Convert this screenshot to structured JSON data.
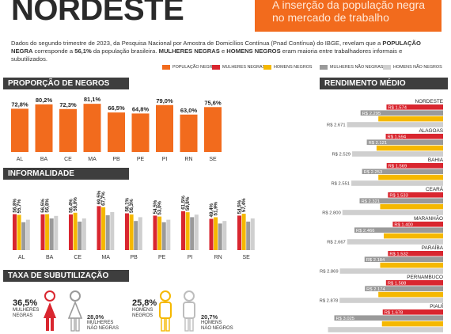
{
  "header": {
    "title": "NORDESTE",
    "subtitle": "A inserção da população negra no mercado de trabalho"
  },
  "intro": {
    "part1": "Dados do segundo trimestre de 2023, da Pesquisa Nacional por Amostra de Domicílios Contínua (Pnad Contínua) do IBGE, revelam que a ",
    "bold1": "POPULAÇÃO NEGRA",
    "part2": " corresponde a ",
    "bold2": "56,1%",
    "part3": " da população brasileira. ",
    "bold3": "MULHERES NEGRAS",
    "part4": " e ",
    "bold4": "HOMENS NEGROS",
    "part5": " eram maioria entre trabalhadores informais e subutilizados."
  },
  "legend": [
    {
      "label": "POPULAÇÃO NEGRA",
      "color": "#f26b1d"
    },
    {
      "label": "MULHERES NEGRAS",
      "color": "#d9262f"
    },
    {
      "label": "HOMENS NEGROS",
      "color": "#f5b800"
    },
    {
      "label": "MULHERES NÃO NEGRAS",
      "color": "#9a9a9a"
    },
    {
      "label": "HOMENS NÃO NEGROS",
      "color": "#cfcfcf"
    }
  ],
  "sections": {
    "proporcao": "PROPORÇÃO DE NEGROS",
    "informalidade": "INFORMALIDADE",
    "subutilizacao": "TAXA DE SUBUTILIZAÇÃO",
    "rendimento": "RENDIMENTO MÉDIO"
  },
  "subutilizacao": {
    "mulheres_negras": {
      "value": "36,5%",
      "label1": "MULHERES",
      "label2": "NEGRAS"
    },
    "mulheres_nao_negras": {
      "value": "28,0%",
      "label1": "MULHERES",
      "label2": "NÃO NEGRAS"
    },
    "homens_negros": {
      "value": "25,8%",
      "label1": "HOMENS",
      "label2": "NEGROS"
    },
    "homens_nao_negros": {
      "value": "20,7%",
      "label1": "HOMENS",
      "label2": "NÃO NEGROS"
    }
  },
  "chart_data": [
    {
      "type": "bar",
      "title": "PROPORÇÃO DE NEGROS",
      "categories": [
        "AL",
        "BA",
        "CE",
        "MA",
        "PB",
        "PE",
        "PI",
        "RN",
        "SE"
      ],
      "values": [
        72.8,
        80.2,
        72.3,
        81.1,
        66.5,
        64.8,
        79.0,
        63.0,
        75.6
      ],
      "value_labels": [
        "72,8%",
        "80,2%",
        "72,3%",
        "81,1%",
        "66,5%",
        "64,8%",
        "79,0%",
        "63,0%",
        "75,6%"
      ],
      "ylim": [
        0,
        100
      ],
      "color": "#f26b1d"
    },
    {
      "type": "bar",
      "title": "INFORMALIDADE",
      "categories": [
        "AL",
        "BA",
        "CE",
        "MA",
        "PB",
        "PE",
        "PI",
        "RN",
        "SE"
      ],
      "series": [
        {
          "name": "MULHERES NEGRAS",
          "color": "#d9262f",
          "values": [
            56.8,
            56.5,
            56.4,
            69.5,
            58.1,
            54.5,
            61.5,
            49.4,
            54.5
          ],
          "value_labels": [
            "56,8%",
            "56,5%",
            "56,4%",
            "69,5%",
            "58,1%",
            "54,5%",
            "61,5%",
            "49,4%",
            "54,5%"
          ]
        },
        {
          "name": "HOMENS NEGROS",
          "color": "#f5b800",
          "values": [
            55.7,
            56.8,
            59.0,
            67.7,
            56.3,
            53.0,
            59.8,
            51.9,
            57.4
          ],
          "value_labels": [
            "55,7%",
            "56,8%",
            "59,0%",
            "67,7%",
            "56,3%",
            "53,0%",
            "59,8%",
            "51,9%",
            "57,4%"
          ]
        },
        {
          "name": "MULHERES NÃO NEGRAS",
          "color": "#9a9a9a",
          "values": [
            44,
            50,
            45,
            55,
            46,
            44,
            52,
            42,
            45
          ],
          "value_labels": []
        },
        {
          "name": "HOMENS NÃO NEGROS",
          "color": "#cfcfcf",
          "values": [
            48,
            54,
            50,
            60,
            52,
            48,
            56,
            46,
            50
          ],
          "value_labels": []
        }
      ],
      "ylim": [
        0,
        100
      ]
    },
    {
      "type": "bar",
      "orientation": "horizontal",
      "title": "RENDIMENTO MÉDIO",
      "categories": [
        "NORDESTE",
        "ALAGOAS",
        "BAHIA",
        "CEARÁ",
        "MARANHÃO",
        "PARAÍBA",
        "PERNAMBUCO",
        "PIAUÍ"
      ],
      "series": [
        {
          "name": "MULHERES NEGRAS",
          "color": "#d9262f",
          "values": [
            1574,
            1594,
            1569,
            1533,
            1400,
            1532,
            1588,
            1678
          ],
          "value_labels": [
            "R$ 1.574",
            "R$ 1.594",
            "R$ 1.569",
            "R$ 1.533",
            "R$ 1.400",
            "R$ 1.532",
            "R$ 1.588",
            "R$ 1.678"
          ]
        },
        {
          "name": "MULHERES NÃO NEGRAS",
          "color": "#9a9a9a",
          "values": [
            2295,
            2121,
            2253,
            2321,
            2466,
            2184,
            2174,
            3025
          ],
          "value_labels": [
            "R$ 2.295",
            "R$ 2.121",
            "R$ 2.253",
            "R$ 2.321",
            "R$ 2.466",
            "R$ 2.184",
            "R$ 2.174",
            "R$ 3.025"
          ]
        },
        {
          "name": "HOMENS NEGROS",
          "color": "#f5b800",
          "values": [
            1800,
            1850,
            1800,
            1750,
            1650,
            1750,
            1800,
            1700
          ],
          "value_labels": []
        },
        {
          "name": "HOMENS NÃO NEGROS",
          "color": "#cfcfcf",
          "values": [
            2671,
            2529,
            2551,
            2800,
            2667,
            2869,
            2878,
            3200
          ],
          "value_labels": [
            "R$ 2.671",
            "R$ 2.529",
            "R$ 2.551",
            "R$ 2.800",
            "R$ 2.667",
            "R$ 2.869",
            "R$ 2.878",
            ""
          ]
        }
      ],
      "xlim": [
        0,
        3300
      ]
    }
  ]
}
